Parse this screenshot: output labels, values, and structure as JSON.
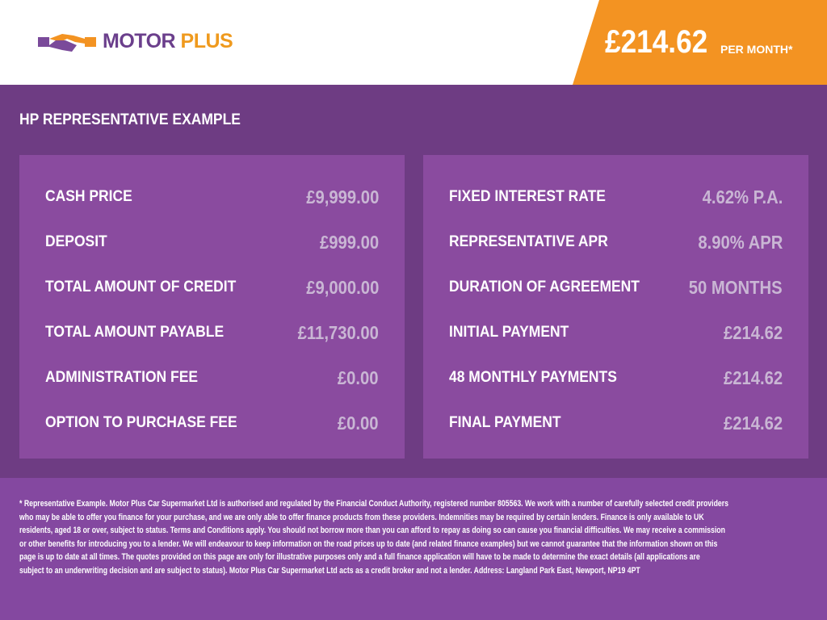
{
  "brand": {
    "name_part1": "MOTOR",
    "name_part2": "PLUS",
    "colors": {
      "purple": "#6b3f8c",
      "orange": "#f39322"
    }
  },
  "header": {
    "price": "£214.62",
    "per_month": "PER MONTH*"
  },
  "title": "HP REPRESENTATIVE EXAMPLE",
  "left_panel": [
    {
      "label": "CASH PRICE",
      "value": "£9,999.00"
    },
    {
      "label": "DEPOSIT",
      "value": "£999.00"
    },
    {
      "label": "TOTAL AMOUNT OF CREDIT",
      "value": "£9,000.00"
    },
    {
      "label": "TOTAL AMOUNT PAYABLE",
      "value": "£11,730.00"
    },
    {
      "label": "ADMINISTRATION FEE",
      "value": "£0.00"
    },
    {
      "label": "OPTION TO PURCHASE FEE",
      "value": "£0.00"
    }
  ],
  "right_panel": [
    {
      "label": "FIXED INTEREST RATE",
      "value": "4.62% P.A."
    },
    {
      "label": "REPRESENTATIVE APR",
      "value": "8.90% APR"
    },
    {
      "label": "DURATION OF AGREEMENT",
      "value": "50 MONTHS"
    },
    {
      "label": "INITIAL PAYMENT",
      "value": "£214.62"
    },
    {
      "label": "48 MONTHLY PAYMENTS",
      "value": "£214.62"
    },
    {
      "label": "FINAL PAYMENT",
      "value": "£214.62"
    }
  ],
  "disclaimer_lines": [
    "* Representative Example. Motor Plus Car Supermarket Ltd is authorised and regulated by the Financial Conduct Authority, registered number 805563. We work with a number of carefully selected credit providers",
    "who may be able to offer you finance for your purchase, and we are only able to offer finance products from these providers. Indemnities may be required by certain lenders. Finance is only available to UK",
    "residents, aged 18 or over, subject to status. Terms and Conditions apply. You should not borrow more than you can afford to repay as doing so can cause you financial difficulties. We may receive a commission",
    "or other benefits for introducing you to a lender. We will endeavour to keep information on the road prices up to date (and related finance examples) but we cannot guarantee that the information shown on this",
    "page is up to date at all times. The quotes provided on this page are only for illustrative purposes only and a full finance application will have to be made to determine the exact details (all applications are",
    "subject to an underwriting decision and are subject to status). Motor Plus Car Supermarket Ltd acts as a credit broker and not a lender. Address: Langland Park East, Newport, NP19 4PT"
  ]
}
